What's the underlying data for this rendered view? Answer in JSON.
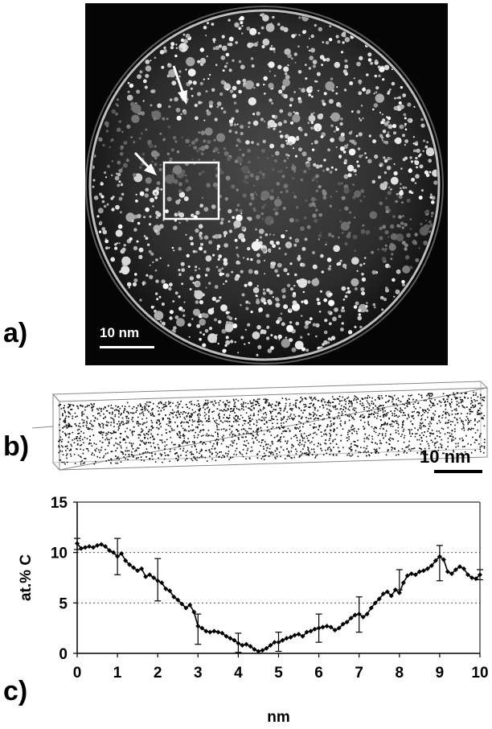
{
  "figure": {
    "panel_a": {
      "letter": "a)",
      "scale_bar_label": "10 nm"
    },
    "panel_b": {
      "letter": "b)",
      "scale_bar_label": "10 nm"
    },
    "panel_c": {
      "letter": "c)"
    }
  },
  "chart_data": {
    "type": "line",
    "xlabel": "nm",
    "ylabel": "at.% C",
    "xlim": [
      0,
      10
    ],
    "ylim": [
      0,
      15
    ],
    "x_ticks": [
      0,
      1,
      2,
      3,
      4,
      5,
      6,
      7,
      8,
      9,
      10
    ],
    "y_ticks": [
      0,
      5,
      10,
      15
    ],
    "grid": "horizontal dotted at 5, 10, 15",
    "series": [
      {
        "color": "#000000",
        "x": [
          0.0,
          0.1,
          0.2,
          0.3,
          0.4,
          0.5,
          0.6,
          0.7,
          0.8,
          0.9,
          1.0,
          1.1,
          1.2,
          1.3,
          1.4,
          1.5,
          1.6,
          1.7,
          1.8,
          1.9,
          2.0,
          2.1,
          2.2,
          2.3,
          2.4,
          2.5,
          2.6,
          2.7,
          2.8,
          2.9,
          3.0,
          3.1,
          3.2,
          3.3,
          3.4,
          3.5,
          3.6,
          3.7,
          3.8,
          3.9,
          4.0,
          4.1,
          4.2,
          4.3,
          4.4,
          4.5,
          4.6,
          4.7,
          4.8,
          4.9,
          5.0,
          5.1,
          5.2,
          5.3,
          5.4,
          5.5,
          5.6,
          5.7,
          5.8,
          5.9,
          6.0,
          6.1,
          6.2,
          6.3,
          6.4,
          6.5,
          6.6,
          6.7,
          6.8,
          6.9,
          7.0,
          7.1,
          7.2,
          7.3,
          7.4,
          7.5,
          7.6,
          7.7,
          7.8,
          7.9,
          8.0,
          8.1,
          8.2,
          8.3,
          8.4,
          8.5,
          8.6,
          8.7,
          8.8,
          8.9,
          9.0,
          9.1,
          9.2,
          9.3,
          9.4,
          9.5,
          9.6,
          9.7,
          9.8,
          9.9,
          10.0
        ],
        "y": [
          10.9,
          10.4,
          10.5,
          10.6,
          10.5,
          10.7,
          10.8,
          10.6,
          10.2,
          10.0,
          9.6,
          9.9,
          9.2,
          8.8,
          8.5,
          8.2,
          8.4,
          7.6,
          7.8,
          7.5,
          7.2,
          7.0,
          6.4,
          6.2,
          5.6,
          5.3,
          4.9,
          4.5,
          4.8,
          4.1,
          2.7,
          2.5,
          2.2,
          2.1,
          2.2,
          2.1,
          2.0,
          1.7,
          1.5,
          1.3,
          1.0,
          0.8,
          0.9,
          0.7,
          0.4,
          0.2,
          0.3,
          0.5,
          0.8,
          1.1,
          1.1,
          1.3,
          1.5,
          1.6,
          1.8,
          1.9,
          1.7,
          2.1,
          2.2,
          2.4,
          2.5,
          2.6,
          2.7,
          2.6,
          2.3,
          2.5,
          2.9,
          3.1,
          3.5,
          3.8,
          3.9,
          3.6,
          3.9,
          4.5,
          5.0,
          5.4,
          5.9,
          6.1,
          5.7,
          6.3,
          6.0,
          7.0,
          7.7,
          7.9,
          7.8,
          8.1,
          8.2,
          8.4,
          8.7,
          9.2,
          9.6,
          9.3,
          8.1,
          7.9,
          8.3,
          8.6,
          8.4,
          7.8,
          7.5,
          7.4,
          7.8
        ]
      }
    ],
    "error_bars": [
      {
        "x": 0,
        "low": 10.3,
        "high": 11.4
      },
      {
        "x": 1,
        "low": 7.8,
        "high": 11.4
      },
      {
        "x": 2,
        "low": 5.2,
        "high": 9.4
      },
      {
        "x": 3,
        "low": 0.9,
        "high": 3.9
      },
      {
        "x": 4,
        "low": 0.1,
        "high": 2.0
      },
      {
        "x": 5,
        "low": 0.2,
        "high": 2.1
      },
      {
        "x": 6,
        "low": 1.1,
        "high": 3.9
      },
      {
        "x": 7,
        "low": 2.1,
        "high": 5.6
      },
      {
        "x": 8,
        "low": 6.3,
        "high": 8.3
      },
      {
        "x": 9,
        "low": 7.2,
        "high": 10.7
      },
      {
        "x": 10,
        "low": 7.3,
        "high": 8.3
      }
    ]
  }
}
